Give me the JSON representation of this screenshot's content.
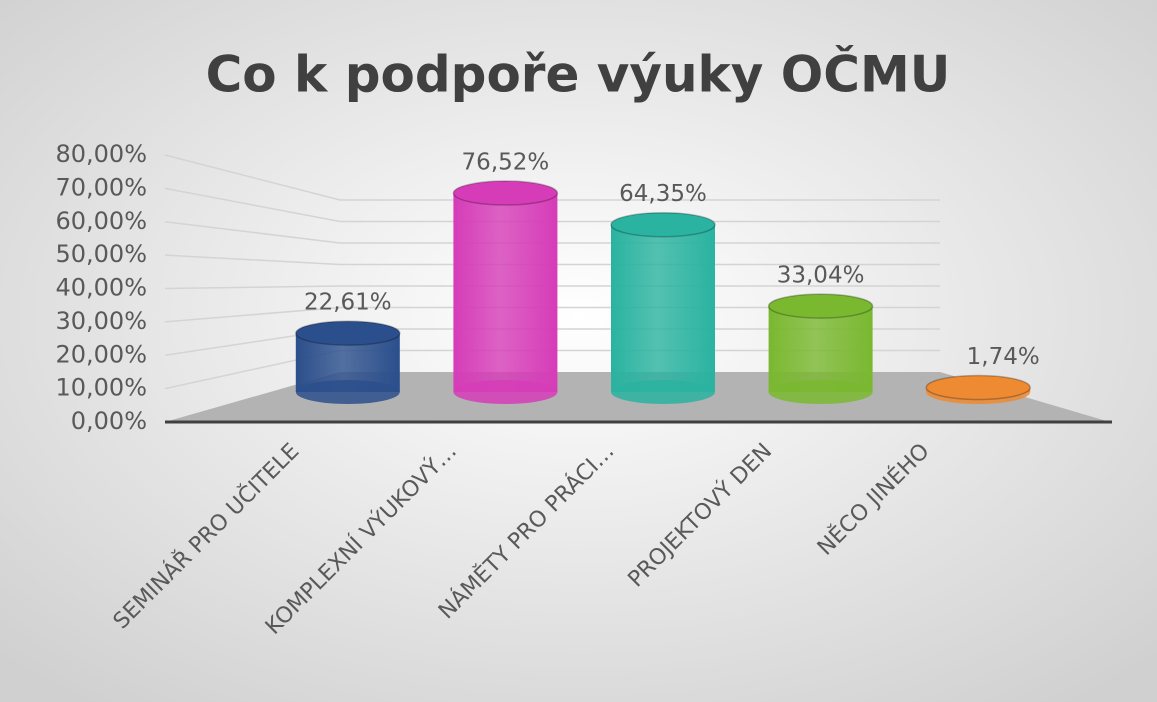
{
  "chart_data": {
    "type": "bar",
    "title": "Co k podpoře výuky OČMU",
    "categories": [
      "SEMINÁŘ PRO UČITELE",
      "KOMPLEXNÍ VÝUKOVÝ…",
      "NÁMĚTY PRO PRÁCI…",
      "PROJEKTOVÝ DEN",
      "NĚCO JINÉHO"
    ],
    "values": [
      22.61,
      76.52,
      64.35,
      33.04,
      1.74
    ],
    "value_labels": [
      "22,61%",
      "76,52%",
      "64,35%",
      "33,04%",
      "1,74%"
    ],
    "colors": [
      "#2b4f8c",
      "#d63cb8",
      "#2ab3a0",
      "#7ab830",
      "#ee8a32"
    ],
    "ylim": [
      0,
      80
    ],
    "yticks": [
      {
        "value": 0,
        "label": "0,00%"
      },
      {
        "value": 10,
        "label": "10,00%"
      },
      {
        "value": 20,
        "label": "20,00%"
      },
      {
        "value": 30,
        "label": "30,00%"
      },
      {
        "value": 40,
        "label": "40,00%"
      },
      {
        "value": 50,
        "label": "50,00%"
      },
      {
        "value": 60,
        "label": "60,00%"
      },
      {
        "value": 70,
        "label": "70,00%"
      },
      {
        "value": 80,
        "label": "80,00%"
      }
    ],
    "grid": true
  }
}
